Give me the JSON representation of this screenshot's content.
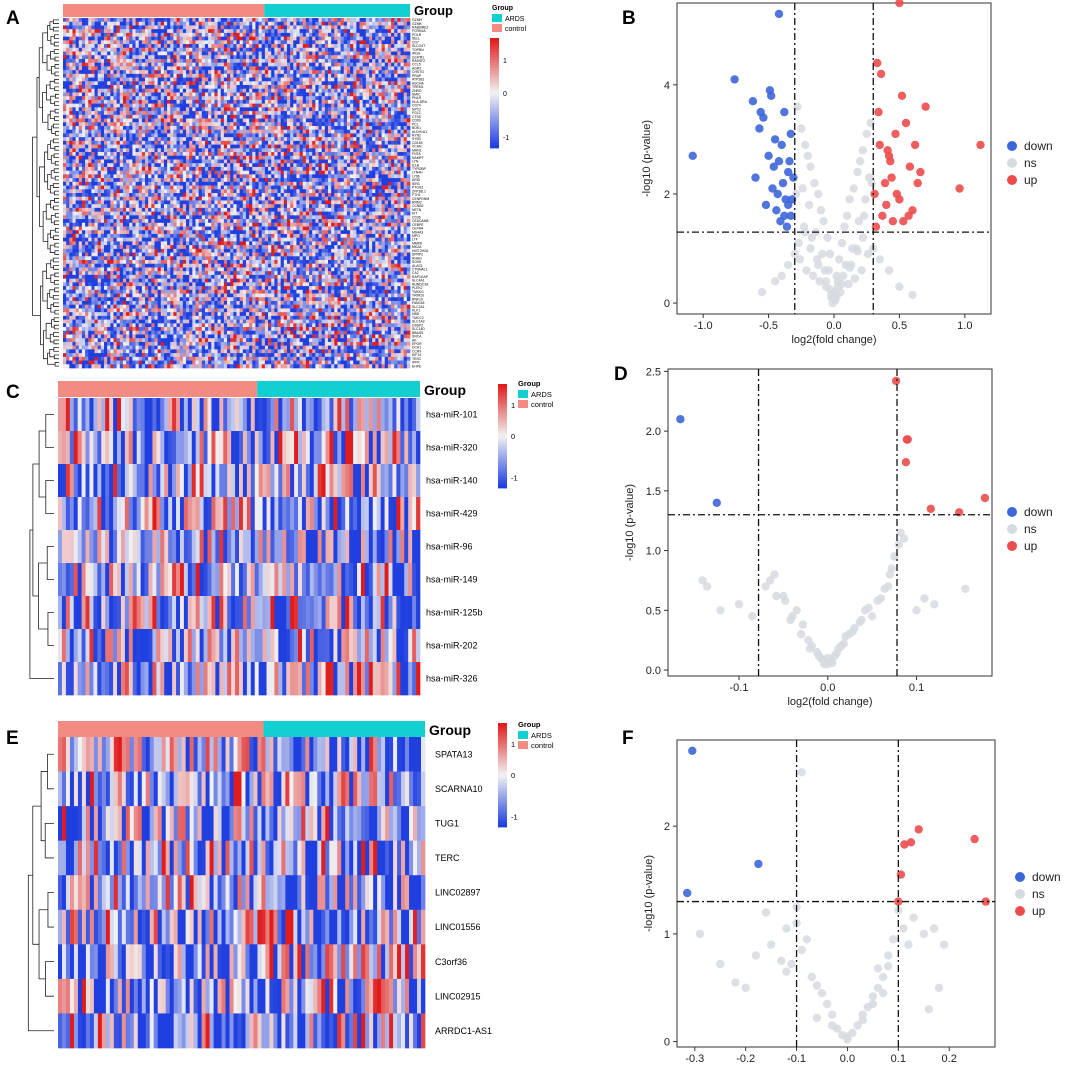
{
  "figure": {
    "panel_labels": [
      "A",
      "B",
      "C",
      "D",
      "E",
      "F"
    ],
    "colors": {
      "down": "#3d66d9",
      "ns": "#d6dbe0",
      "up": "#ec4c4c",
      "ards": "#12cfd2",
      "control": "#f28b82",
      "heat_low": "#1f3fe0",
      "heat_mid": "#f2f2f2",
      "heat_high": "#e01c1c"
    },
    "group_bar_label": "Group",
    "heatmap_legend": {
      "title": "Group",
      "groups": [
        "ARDS",
        "control"
      ],
      "ticks": [
        "1",
        "0",
        "-1"
      ]
    }
  },
  "chart_data": [
    {
      "panel": "A",
      "type": "heatmap",
      "title": "",
      "group_label": "Group",
      "row_labels": [
        "GZMH",
        "GZMK",
        "RAB6IRE2",
        "FCRN1A",
        "POLR",
        "SELL",
        "CD7",
        "SLCO4T",
        "TOPBN",
        "IRGS",
        "GLIPR1",
        "RASSF2",
        "CCL5",
        "AGR2",
        "CHSTG",
        "PRAP",
        "ATP2B1",
        "ASCHA",
        "TREM1",
        "ZNRD",
        "SMIC",
        "PNLR",
        "HLA-DRA",
        "CD74",
        "NPC2",
        "FGL2",
        "CTSS",
        "CD93",
        "PCL",
        "BOK1",
        "ALDH1A1",
        "RYN2",
        "SYB3",
        "CD163",
        "VCAN",
        "MAN1",
        "FNTA",
        "NAMPT",
        "LYN",
        "IL1B",
        "TYROBP",
        "LTN4H",
        "LY96",
        "ARID",
        "IER3",
        "PTGS2",
        "ZFP36L1",
        "FTH1",
        "CENPDNM",
        "RRM2",
        "CCNB2",
        "NETN",
        "KIT",
        "CD36",
        "CEACAM8",
        "CEBPE",
        "OLFM4",
        "MS4A3",
        "MPO",
        "LTF",
        "MMP8",
        "MKZA",
        "HIST2H2A",
        "SPRP2",
        "RHAG",
        "SOX6",
        "ALAS2",
        "CTNNAL1",
        "CA2",
        "RAP1GAP",
        "SLC4A1",
        "RUNDC3A",
        "PLEK2",
        "TMOD1",
        "TRIM10",
        "RNF10",
        "FAM118",
        "SLC2A1",
        "KLF1",
        "HBD",
        "TMCC2",
        "SLC1A2",
        "GSSP2",
        "SLC14D",
        "BBAG5",
        "SNCA",
        "AK",
        "EPOR",
        "DCA1",
        "CCR9",
        "KIF14",
        "TESC",
        "IPPK",
        "EHPE"
      ],
      "row_labels_note": "Gene names printed in tiny type alongside each row",
      "legend_groups": [
        "ARDS",
        "control"
      ],
      "legend_ticks": [
        1,
        0,
        -1
      ]
    },
    {
      "panel": "B",
      "type": "scatter",
      "xlabel": "log2(fold change)",
      "ylabel": "-log10 (p-value)",
      "xlim": [
        -1.2,
        1.2
      ],
      "ylim": [
        -0.2,
        5.5
      ],
      "x_ticks": [
        -1.0,
        -0.5,
        0.0,
        0.5,
        1.0
      ],
      "x_tick_labels": [
        "-1.0",
        "-0.5",
        "0.0",
        "0.5",
        "1.0"
      ],
      "y_ticks": [
        0,
        2,
        4
      ],
      "y_tick_labels": [
        "0",
        "2",
        "4"
      ],
      "thresholds": {
        "x": [
          -0.3,
          0.3
        ],
        "y": 1.3
      },
      "legend": [
        "down",
        "ns",
        "up"
      ],
      "series": [
        {
          "name": "down",
          "x": [
            -0.42,
            -1.08,
            -0.76,
            -0.62,
            -0.56,
            -0.48,
            -0.54,
            -0.45,
            -0.38,
            -0.5,
            -0.46,
            -0.6,
            -0.4,
            -0.35,
            -0.43,
            -0.37,
            -0.33,
            -0.52,
            -0.44,
            -0.39,
            -0.34,
            -0.41,
            -0.47,
            -0.36,
            -0.32,
            -0.57,
            -0.31,
            -0.49,
            -0.33,
            -0.38,
            -0.42,
            -0.35
          ],
          "y": [
            5.3,
            2.7,
            4.1,
            3.7,
            3.5,
            3.8,
            3.4,
            3.0,
            3.5,
            2.7,
            2.5,
            2.3,
            2.9,
            2.4,
            2.0,
            1.9,
            1.6,
            1.8,
            1.7,
            2.2,
            2.6,
            1.5,
            2.1,
            1.4,
            1.9,
            3.2,
            2.3,
            3.9,
            3.1,
            1.6,
            2.6,
            1.8
          ]
        },
        {
          "name": "up",
          "x": [
            0.5,
            1.12,
            0.96,
            0.7,
            0.62,
            0.55,
            0.47,
            0.41,
            0.36,
            0.33,
            0.58,
            0.64,
            0.5,
            0.44,
            0.4,
            0.37,
            0.31,
            0.53,
            0.6,
            0.66,
            0.43,
            0.39,
            0.34,
            0.32,
            0.48,
            0.57,
            0.52,
            0.35,
            0.45,
            0.42
          ],
          "y": [
            5.5,
            2.9,
            2.1,
            3.6,
            2.9,
            3.3,
            3.1,
            2.8,
            4.2,
            4.4,
            2.5,
            2.2,
            1.9,
            2.3,
            1.8,
            1.6,
            2.0,
            1.5,
            1.7,
            2.4,
            2.6,
            2.2,
            3.5,
            1.4,
            2.0,
            1.6,
            3.8,
            2.9,
            1.5,
            2.7
          ]
        },
        {
          "name": "ns",
          "x": [
            -0.28,
            -0.25,
            -0.22,
            -0.2,
            -0.18,
            -0.15,
            -0.12,
            -0.1,
            -0.08,
            -0.05,
            -0.03,
            0.0,
            0.02,
            0.04,
            0.06,
            0.08,
            0.1,
            0.12,
            0.15,
            0.18,
            0.2,
            0.22,
            0.25,
            0.28,
            -0.27,
            -0.23,
            -0.19,
            -0.14,
            -0.09,
            -0.04,
            0.03,
            0.09,
            0.14,
            0.19,
            0.24,
            0.27,
            -0.26,
            -0.21,
            -0.16,
            -0.11,
            -0.06,
            -0.02,
            0.01,
            0.05,
            0.11,
            0.16,
            0.21,
            0.26,
            -0.24,
            -0.17,
            -0.13,
            -0.07,
            0.07,
            0.13,
            0.17,
            0.23,
            -0.29,
            0.29,
            -0.01,
            0.0,
            -0.02,
            0.02,
            0.01,
            -0.03,
            0.03,
            -0.06,
            0.06,
            -0.12,
            0.12,
            -0.18,
            0.18,
            -0.22,
            0.22,
            -0.3,
            0.3,
            -0.35,
            0.35,
            -0.4,
            0.42,
            -0.45,
            0.5,
            -0.55,
            0.6
          ],
          "y": [
            3.6,
            3.2,
            2.9,
            2.7,
            2.5,
            2.2,
            2.0,
            1.7,
            1.5,
            1.2,
            0.9,
            0.2,
            0.5,
            0.8,
            1.1,
            1.4,
            1.6,
            1.9,
            2.1,
            2.4,
            2.6,
            2.8,
            3.1,
            3.3,
            1.1,
            1.4,
            1.8,
            1.3,
            0.9,
            0.6,
            0.4,
            0.7,
            1.0,
            1.5,
            1.9,
            2.3,
            0.8,
            0.6,
            0.5,
            0.4,
            0.3,
            0.1,
            0.05,
            0.2,
            0.35,
            0.45,
            0.6,
            0.9,
            2.1,
            1.2,
            0.8,
            0.6,
            0.5,
            0.7,
            1.0,
            1.6,
            2.0,
            2.2,
            0.0,
            0.1,
            0.15,
            0.12,
            0.08,
            0.25,
            0.3,
            0.4,
            0.35,
            0.7,
            0.65,
            1.0,
            0.95,
            1.3,
            1.2,
            0.9,
            1.0,
            0.7,
            0.8,
            0.5,
            0.6,
            0.4,
            0.3,
            0.2,
            0.15
          ]
        }
      ]
    },
    {
      "panel": "C",
      "type": "heatmap",
      "group_label": "Group",
      "row_labels": [
        "hsa-miR-101",
        "hsa-miR-320",
        "hsa-miR-140",
        "hsa-miR-429",
        "hsa-miR-96",
        "hsa-miR-149",
        "hsa-miR-125b",
        "hsa-miR-202",
        "hsa-miR-326"
      ],
      "legend_groups": [
        "ARDS",
        "control"
      ],
      "legend_ticks": [
        1,
        0,
        -1
      ]
    },
    {
      "panel": "D",
      "type": "scatter",
      "xlabel": "log2(fold change)",
      "ylabel": "-log10 (p-value)",
      "xlim": [
        -0.18,
        0.185
      ],
      "ylim": [
        -0.05,
        2.52
      ],
      "x_ticks": [
        -0.1,
        0.0,
        0.1
      ],
      "x_tick_labels": [
        "-0.1",
        "0.0",
        "0.1"
      ],
      "y_ticks": [
        0.0,
        0.5,
        1.0,
        1.5,
        2.0,
        2.5
      ],
      "y_tick_labels": [
        "0.0",
        "0.5",
        "1.0",
        "1.5",
        "2.0",
        "2.5"
      ],
      "thresholds": {
        "x": [
          -0.078,
          0.078
        ],
        "y": 1.3
      },
      "legend": [
        "down",
        "ns",
        "up"
      ],
      "series": [
        {
          "name": "down",
          "x": [
            -0.166,
            -0.125
          ],
          "y": [
            2.1,
            1.4
          ]
        },
        {
          "name": "up",
          "x": [
            0.077,
            0.09,
            0.089,
            0.088,
            0.116,
            0.148,
            0.177
          ],
          "y": [
            2.42,
            1.93,
            1.93,
            1.74,
            1.35,
            1.32,
            1.44
          ]
        },
        {
          "name": "ns",
          "x": [
            -0.141,
            -0.136,
            -0.121,
            -0.1,
            -0.085,
            -0.06,
            -0.05,
            -0.042,
            -0.035,
            -0.03,
            -0.022,
            -0.018,
            -0.012,
            -0.008,
            -0.004,
            0.0,
            0.004,
            0.008,
            0.012,
            0.018,
            0.024,
            0.03,
            0.036,
            0.042,
            0.05,
            0.06,
            0.068,
            0.072,
            0.075,
            0.08,
            0.082,
            0.086,
            0.1,
            0.109,
            0.12,
            0.155,
            -0.07,
            -0.065,
            -0.058,
            -0.048,
            -0.04,
            -0.028,
            0.02,
            0.028,
            0.038,
            0.046,
            0.056,
            0.064,
            0.07,
            -0.02,
            -0.01,
            0.0,
            0.01,
            0.015,
            -0.005,
            0.005
          ],
          "y": [
            0.75,
            0.7,
            0.5,
            0.55,
            0.45,
            0.8,
            0.62,
            0.42,
            0.5,
            0.3,
            0.25,
            0.2,
            0.15,
            0.1,
            0.05,
            0.05,
            0.08,
            0.12,
            0.18,
            0.22,
            0.3,
            0.35,
            0.4,
            0.5,
            0.45,
            0.6,
            0.7,
            0.85,
            0.95,
            1.05,
            1.15,
            1.1,
            0.5,
            0.6,
            0.55,
            0.68,
            0.7,
            0.75,
            0.62,
            0.58,
            0.45,
            0.38,
            0.28,
            0.32,
            0.42,
            0.52,
            0.58,
            0.68,
            0.8,
            0.18,
            0.12,
            0.1,
            0.14,
            0.2,
            0.08,
            0.06
          ]
        }
      ]
    },
    {
      "panel": "E",
      "type": "heatmap",
      "group_label": "Group",
      "row_labels": [
        "SPATA13",
        "SCARNA10",
        "TUG1",
        "TERC",
        "LINC02897",
        "LINC01556",
        "C3orf36",
        "LINC02915",
        "ARRDC1-AS1"
      ],
      "legend_groups": [
        "ARDS",
        "control"
      ],
      "legend_ticks": [
        1,
        0,
        -1
      ]
    },
    {
      "panel": "F",
      "type": "scatter",
      "xlabel": "log2(fold change)",
      "ylabel": "-log10 (p-value)",
      "xlim": [
        -0.335,
        0.29
      ],
      "ylim": [
        -0.05,
        2.8
      ],
      "x_ticks": [
        -0.3,
        -0.2,
        -0.1,
        0.0,
        0.1,
        0.2
      ],
      "x_tick_labels": [
        "-0.3",
        "-0.2",
        "-0.1",
        "0.0",
        "0.1",
        "0.2"
      ],
      "y_ticks": [
        0,
        1,
        2
      ],
      "y_tick_labels": [
        "0",
        "1",
        "2"
      ],
      "thresholds": {
        "x": [
          -0.1,
          0.1
        ],
        "y": 1.3
      },
      "legend": [
        "down",
        "ns",
        "up"
      ],
      "series": [
        {
          "name": "down",
          "x": [
            -0.305,
            -0.175,
            -0.315
          ],
          "y": [
            2.7,
            1.65,
            1.38
          ]
        },
        {
          "name": "up",
          "x": [
            0.14,
            0.112,
            0.125,
            0.105,
            0.25,
            0.272,
            0.1
          ],
          "y": [
            1.97,
            1.83,
            1.85,
            1.55,
            1.88,
            1.3,
            1.3
          ]
        },
        {
          "name": "ns",
          "x": [
            -0.29,
            -0.25,
            -0.22,
            -0.2,
            -0.18,
            -0.15,
            -0.12,
            -0.1,
            -0.09,
            -0.08,
            -0.07,
            -0.06,
            -0.05,
            -0.04,
            -0.03,
            -0.02,
            -0.01,
            0.0,
            0.01,
            0.02,
            0.03,
            0.04,
            0.05,
            0.06,
            0.07,
            0.08,
            0.09,
            0.11,
            0.13,
            0.15,
            0.17,
            0.19,
            -0.1,
            -0.09,
            -0.13,
            -0.16,
            0.06,
            0.08,
            0.1,
            0.12,
            0.16,
            0.18,
            -0.06,
            -0.03,
            0.0,
            0.03,
            0.05,
            0.07,
            -0.12,
            -0.11
          ],
          "y": [
            1.0,
            0.72,
            0.55,
            0.5,
            0.8,
            0.9,
            1.05,
            1.1,
            2.5,
            0.95,
            0.6,
            0.52,
            0.45,
            0.35,
            0.25,
            0.12,
            0.06,
            0.02,
            0.08,
            0.15,
            0.25,
            0.32,
            0.42,
            0.5,
            0.6,
            0.7,
            0.95,
            1.05,
            1.15,
            1.0,
            1.05,
            0.9,
            1.25,
            0.85,
            0.75,
            1.2,
            0.68,
            0.8,
            1.22,
            0.9,
            0.3,
            0.5,
            0.22,
            0.15,
            0.05,
            0.2,
            0.35,
            0.45,
            0.65,
            0.72
          ]
        }
      ]
    }
  ]
}
